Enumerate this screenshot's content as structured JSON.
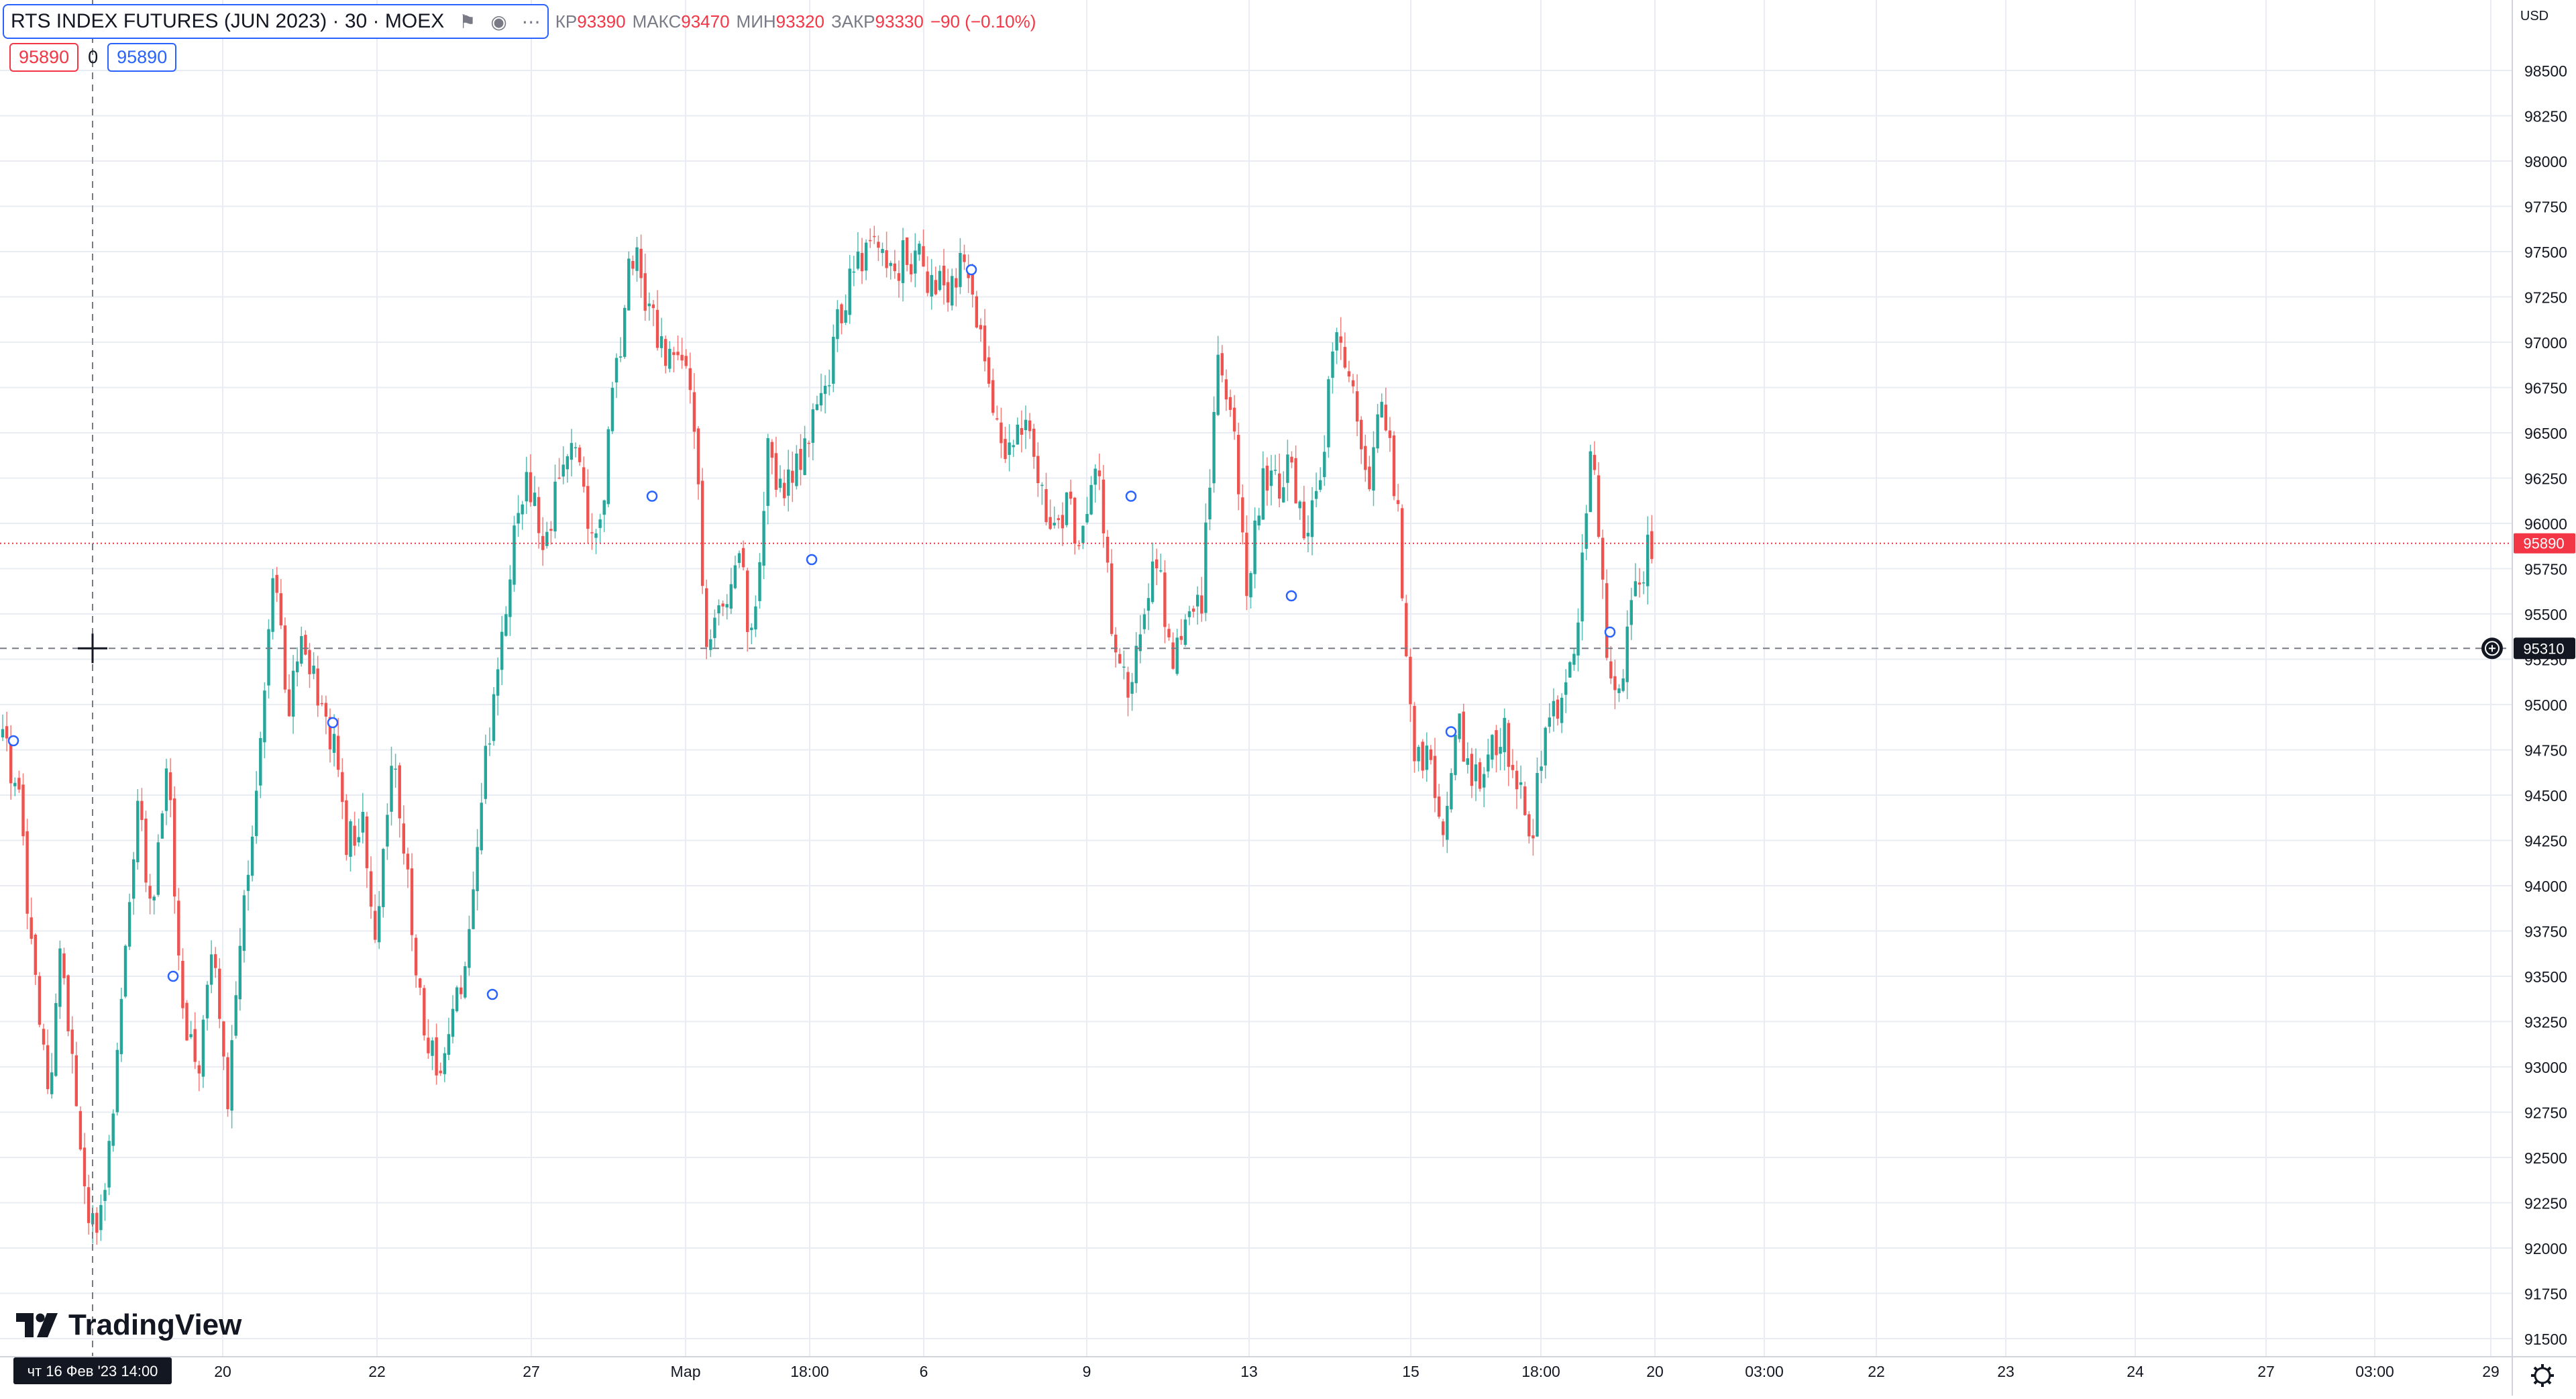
{
  "header": {
    "symbol_title": "RTS INDEX FUTURES (JUN 2023) · 30 · MOEX",
    "ohlc": {
      "open_label": "КР",
      "open": "93390",
      "high_label": "МАКС",
      "high": "93470",
      "low_label": "МИН",
      "low": "93320",
      "close_label": "ЗАКР",
      "close": "93330",
      "change": "−90 (−0.10%)"
    },
    "sell_price": "95890",
    "spread": "0",
    "buy_price": "95890"
  },
  "currency": "USD",
  "brand": "TradingView",
  "crosshair": {
    "price_label": "95310",
    "time_label": "чт 16 Фев '23   14:00"
  },
  "last_price_label": "95890",
  "colors": {
    "up": "#26a69a",
    "down": "#ef5350",
    "last_price": "#f23645",
    "grid": "#e9ecf2",
    "text": "#131722",
    "axis_text": "#131722"
  },
  "icons": [
    "eye-icon",
    "flag-icon",
    "more-icon",
    "settings-gear-icon",
    "plus-circle-icon"
  ],
  "chart_data": {
    "type": "candlestick",
    "interval": "30",
    "y_axis_ticks": [
      91500,
      91750,
      92000,
      92250,
      92500,
      92750,
      93000,
      93250,
      93500,
      93750,
      94000,
      94250,
      94500,
      94750,
      95000,
      95250,
      95500,
      95750,
      96000,
      96250,
      96500,
      96750,
      97000,
      97250,
      97500,
      97750,
      98000,
      98250,
      98500
    ],
    "ylim": [
      91400,
      98900
    ],
    "x_axis_labels": [
      "20",
      "22",
      "27",
      "Мар",
      "18:00",
      "6",
      "9",
      "13",
      "15",
      "18:00",
      "20",
      "03:00",
      "22",
      "23",
      "24",
      "27",
      "03:00",
      "29"
    ],
    "grid": true,
    "last_price": 95890,
    "crosshair_price": 95310,
    "price_path": [
      94800,
      94500,
      93600,
      92800,
      93700,
      92600,
      92100,
      92400,
      93500,
      94400,
      93900,
      94700,
      93300,
      92900,
      93600,
      92800,
      93900,
      94600,
      95800,
      95000,
      95300,
      95100,
      94800,
      94200,
      94400,
      93700,
      94700,
      94000,
      93300,
      92950,
      93200,
      93600,
      94600,
      95200,
      95900,
      96300,
      95900,
      96200,
      96500,
      96000,
      96100,
      96900,
      97500,
      97200,
      97000,
      96900,
      96700,
      95300,
      95500,
      95900,
      95300,
      96400,
      96200,
      96300,
      96500,
      96800,
      97200,
      97400,
      97500,
      97400,
      97450,
      97500,
      97300,
      97300,
      97500,
      97100,
      96700,
      96400,
      96500,
      96300,
      95900,
      96100,
      95900,
      96400,
      95400,
      95100,
      95400,
      95800,
      95300,
      95400,
      95600,
      96900,
      96700,
      95600,
      96300,
      96200,
      96300,
      95900,
      96400,
      97100,
      96700,
      96200,
      96700,
      96100,
      94800,
      94700,
      94300,
      94900,
      94500,
      94700,
      94900,
      94600,
      94300,
      94900,
      95000,
      95300,
      96500,
      95300,
      95100,
      95700,
      95900
    ]
  }
}
